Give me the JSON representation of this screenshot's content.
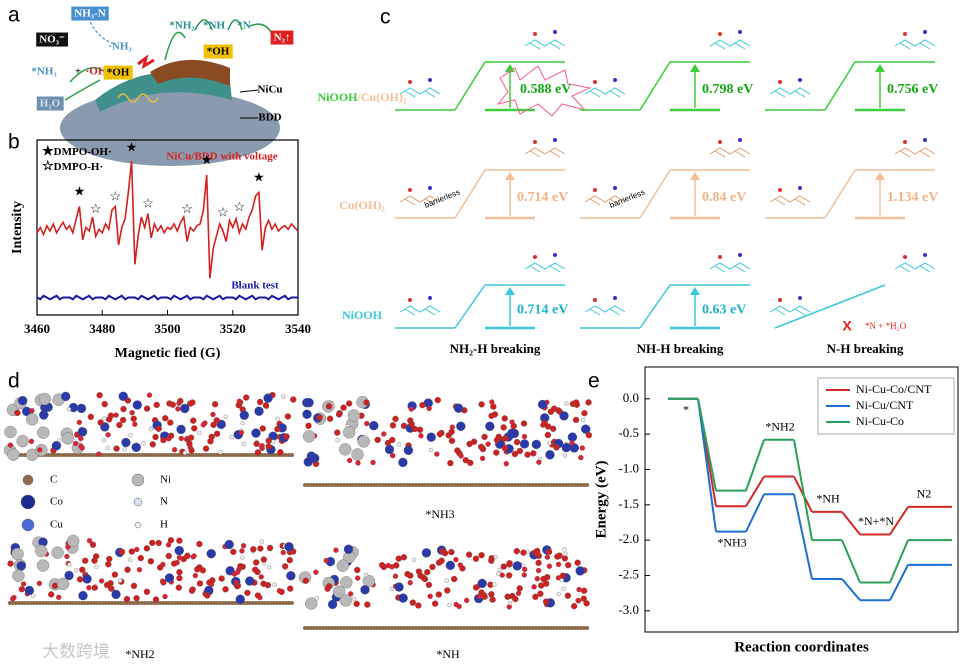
{
  "panel_labels": [
    "a",
    "b",
    "c",
    "d",
    "e"
  ],
  "panel_a": {
    "labels": [
      "NH₃-N",
      "NO₃⁻",
      "·NH₃",
      "*NH₃",
      "+",
      "·OH",
      "*OH",
      "H₂O",
      "*NH₂",
      "*NH",
      "*N",
      "*OH",
      "N₂↑",
      "NiCu",
      "BDD"
    ]
  },
  "chart_data": [
    {
      "type": "line",
      "xlabel": "Magnetic fied (G)",
      "ylabel": "Intensity",
      "x": [
        3460,
        3461,
        3462,
        3463,
        3464,
        3465,
        3466,
        3467,
        3468,
        3469,
        3470,
        3471,
        3472,
        3473,
        3474,
        3475,
        3476,
        3477,
        3478,
        3479,
        3480,
        3481,
        3482,
        3483,
        3484,
        3485,
        3486,
        3487,
        3488,
        3489,
        3490,
        3491,
        3492,
        3493,
        3494,
        3495,
        3496,
        3497,
        3498,
        3499,
        3500,
        3501,
        3502,
        3503,
        3504,
        3505,
        3506,
        3507,
        3508,
        3509,
        3510,
        3511,
        3512,
        3513,
        3514,
        3515,
        3516,
        3517,
        3518,
        3519,
        3520,
        3521,
        3522,
        3523,
        3524,
        3525,
        3526,
        3527,
        3528,
        3529,
        3530,
        3531,
        3532,
        3533,
        3534,
        3535,
        3536,
        3537,
        3538,
        3539,
        3540
      ],
      "series": [
        {
          "name": "NiCu/BDD with voltage",
          "color": "#d42020",
          "values": [
            47,
            50,
            46,
            51,
            48,
            52,
            47,
            50,
            53,
            49,
            51,
            47,
            55,
            62,
            43,
            50,
            48,
            56,
            45,
            49,
            47,
            52,
            49,
            60,
            62,
            40,
            50,
            55,
            70,
            88,
            29,
            45,
            56,
            50,
            58,
            44,
            52,
            48,
            51,
            47,
            50,
            49,
            52,
            48,
            53,
            56,
            42,
            50,
            48,
            51,
            52,
            60,
            80,
            21,
            38,
            45,
            52,
            48,
            42,
            54,
            50,
            55,
            47,
            52,
            49,
            56,
            60,
            68,
            70,
            37,
            50,
            54,
            49,
            52,
            48,
            50,
            51,
            49,
            52,
            50,
            48
          ]
        },
        {
          "name": "Blank test",
          "color": "#1a1aa0",
          "values": [
            10,
            9,
            11,
            10,
            9,
            10,
            11,
            9,
            10,
            10,
            10,
            9,
            11,
            10,
            9,
            10,
            11,
            9,
            10,
            10,
            10,
            9,
            11,
            10,
            9,
            10,
            11,
            9,
            10,
            10,
            10,
            9,
            11,
            10,
            9,
            10,
            11,
            9,
            10,
            10,
            10,
            9,
            11,
            10,
            9,
            10,
            11,
            9,
            10,
            10,
            10,
            9,
            11,
            10,
            9,
            10,
            11,
            9,
            10,
            10,
            10,
            9,
            11,
            10,
            9,
            10,
            11,
            9,
            10,
            10,
            10,
            9,
            11,
            10,
            9,
            10,
            11,
            9,
            10,
            10,
            10
          ]
        }
      ],
      "xlim": [
        3460,
        3540
      ],
      "xticks": [
        3460,
        3480,
        3500,
        3520,
        3540
      ],
      "ylim": [
        0,
        100
      ],
      "legend": [
        {
          "symbol": "★",
          "label": "DMPO-OH·"
        },
        {
          "symbol": "☆",
          "label": "DMPO-H·"
        }
      ],
      "markers": {
        "x": [
          3473,
          3478,
          3484,
          3489,
          3494,
          3506,
          3512,
          3517,
          3522,
          3528
        ],
        "y": [
          70,
          60,
          67,
          95,
          63,
          60,
          88,
          58,
          61,
          78
        ],
        "symbol": [
          "★",
          "☆",
          "☆",
          "★",
          "☆",
          "☆",
          "★",
          "☆",
          "☆",
          "★"
        ]
      }
    },
    {
      "type": "step",
      "ylabel": "Energy (eV)",
      "xlabel": "Reaction coordinates",
      "categories": [
        "*",
        "*NH3",
        "*NH2",
        "*NH",
        "*N+*N",
        "N2"
      ],
      "series": [
        {
          "name": "Ni-Cu-Co/CNT",
          "color": "#d62728",
          "values": [
            0,
            -1.52,
            -1.1,
            -1.6,
            -1.92,
            -1.53
          ]
        },
        {
          "name": "Ni-Cu/CNT",
          "color": "#1f6fd0",
          "values": [
            0,
            -1.88,
            -1.35,
            -2.55,
            -2.85,
            -2.35
          ]
        },
        {
          "name": "Ni-Cu-Co",
          "color": "#2ca05a",
          "values": [
            0,
            -1.3,
            -0.58,
            -2.0,
            -2.6,
            -2.0
          ]
        }
      ],
      "ylim": [
        -3.3,
        0.45
      ],
      "yticks": [
        {
          "value": 0,
          "label": "0.0"
        },
        -0.5,
        {
          "value": -1,
          "label": "-1.0"
        },
        -1.5,
        {
          "value": -2,
          "label": "-2.0"
        },
        -2.5,
        {
          "value": -3,
          "label": "-3.0"
        }
      ],
      "legend_position": "upper right"
    }
  ],
  "panel_c": {
    "row_labels": [
      [
        "NiOOH",
        "/Cu(OH)₂"
      ],
      [
        "Cu(OH)₂"
      ],
      [
        "NiOOH"
      ]
    ],
    "column_labels": [
      "NH₂-H breaking",
      "NH-H breaking",
      "N-H breaking"
    ],
    "barriers": [
      [
        "0.588 eV",
        "0.798 eV",
        "0.756 eV"
      ],
      [
        "0.714 eV",
        "0.84 eV",
        "1.134 eV"
      ],
      [
        "0.714 eV",
        "0.63 eV",
        null
      ]
    ],
    "barrierless": "barrierless",
    "blocked": {
      "mark": "X",
      "product": "*N + *H₂O"
    }
  },
  "panel_d": {
    "legend": [
      "C",
      "Co",
      "Cu",
      "Ni",
      "N",
      "H"
    ],
    "captions": [
      "*NH3",
      "*NH2",
      "*NH"
    ]
  },
  "watermark": "大数跨境"
}
